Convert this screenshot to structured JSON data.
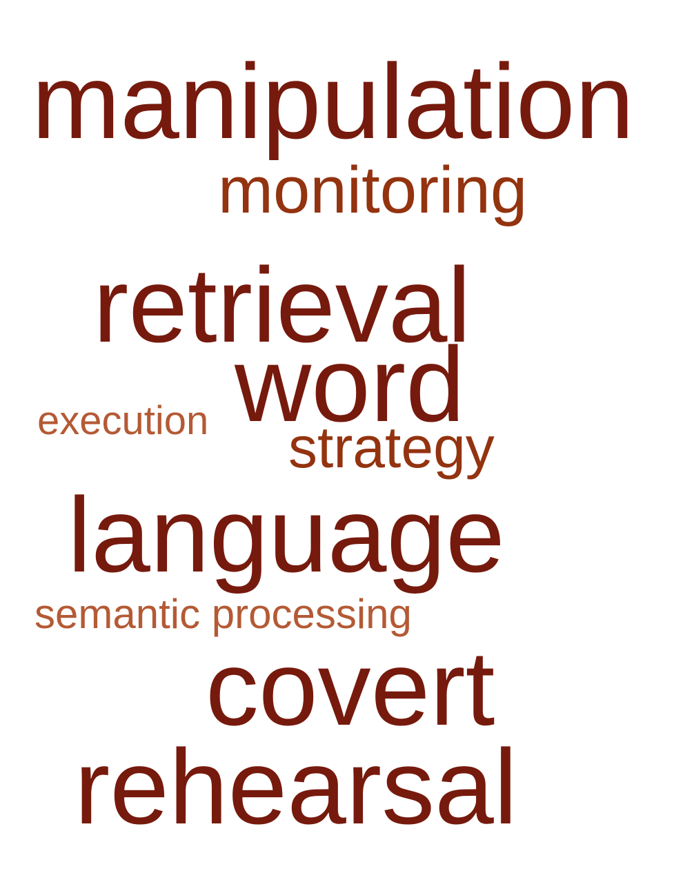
{
  "words": [
    {
      "text": "manipulation",
      "weight": 1
    },
    {
      "text": "monitoring",
      "weight": 2
    },
    {
      "text": "retrieval",
      "weight": 1
    },
    {
      "text": "word",
      "weight": 1
    },
    {
      "text": "execution",
      "weight": 3
    },
    {
      "text": "strategy",
      "weight": 2
    },
    {
      "text": "language",
      "weight": 1
    },
    {
      "text": "semantic processing",
      "weight": 3
    },
    {
      "text": "covert",
      "weight": 1
    },
    {
      "text": "rehearsal",
      "weight": 1
    }
  ],
  "colors": {
    "level_1": "#761a0d",
    "level_2": "#93330f",
    "level_3": "#b45a35",
    "background": "#ffffff"
  }
}
